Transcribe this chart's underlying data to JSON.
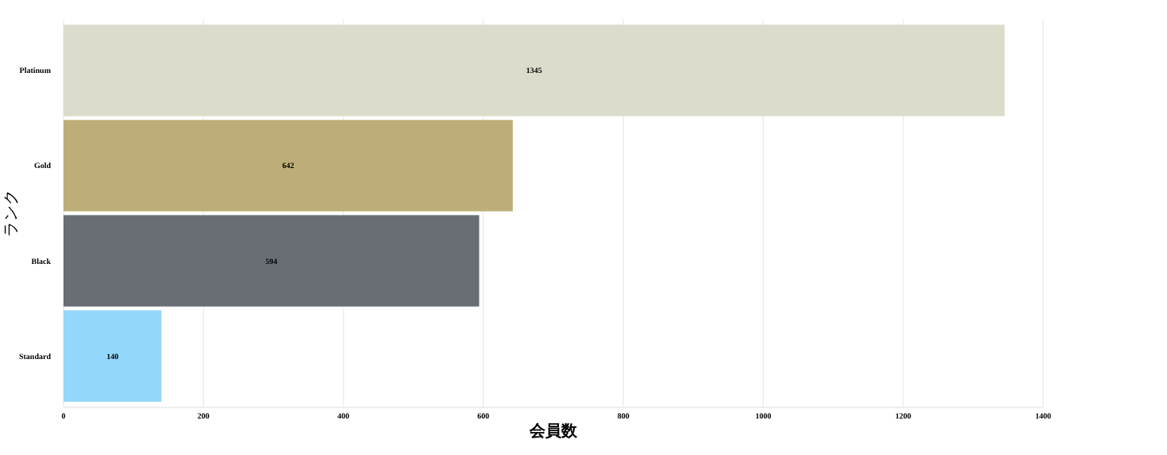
{
  "chart_data": {
    "type": "bar",
    "orientation": "horizontal",
    "xlabel": "会員数",
    "ylabel": "ランク",
    "categories": [
      "Platinum",
      "Gold",
      "Black",
      "Standard"
    ],
    "values": [
      1345,
      642,
      594,
      140
    ],
    "colors": [
      "#dcdccc",
      "#bdae79",
      "#686e74",
      "#93d7fa"
    ],
    "xlim": [
      0,
      1400
    ],
    "xticks": [
      0,
      200,
      400,
      600,
      800,
      1000,
      1200,
      1400
    ],
    "grid": "x",
    "data_labels": true
  }
}
